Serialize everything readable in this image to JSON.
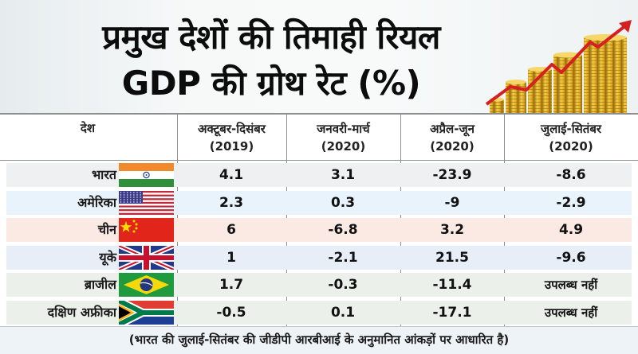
{
  "header": {
    "title_line1": "प्रमुख देशों की तिमाही रियल",
    "title_line2": "GDP की ग्रोथ रेट (%)",
    "decoration": "gold-coin-stacks-with-red-rising-arrow"
  },
  "table": {
    "country_header": "देश",
    "columns": [
      {
        "label": "अक्टूबर-दिसंबर",
        "year": "(2019)"
      },
      {
        "label": "जनवरी-मार्च",
        "year": "(2020)"
      },
      {
        "label": "अप्रैल-जून",
        "year": "(2020)"
      },
      {
        "label": "जुलाई-सितंबर",
        "year": "(2020)"
      }
    ],
    "rows": [
      {
        "country": "भारत",
        "flag": "india-flag-icon",
        "bg": "#eef0f1",
        "values": [
          "4.1",
          "3.1",
          "-23.9",
          "-8.6"
        ]
      },
      {
        "country": "अमेरिका",
        "flag": "usa-flag-icon",
        "bg": "#e9f3fb",
        "values": [
          "2.3",
          "0.3",
          "-9",
          "-2.9"
        ]
      },
      {
        "country": "चीन",
        "flag": "china-flag-icon",
        "bg": "#fbe9e4",
        "values": [
          "6",
          "-6.8",
          "3.2",
          "4.9"
        ]
      },
      {
        "country": "यूके",
        "flag": "uk-flag-icon",
        "bg": "#e8eef8",
        "values": [
          "1",
          "-2.1",
          "21.5",
          "-9.6"
        ]
      },
      {
        "country": "ब्राजील",
        "flag": "brazil-flag-icon",
        "bg": "#ebf1ea",
        "values": [
          "1.7",
          "-0.3",
          "-11.4",
          "उपलब्ध नहीं"
        ]
      },
      {
        "country": "दक्षिण अफ्रीका",
        "flag": "south-africa-flag-icon",
        "bg": "#ebf1ea",
        "values": [
          "-0.5",
          "0.1",
          "-17.1",
          "उपलब्ध नहीं"
        ]
      }
    ]
  },
  "footer": {
    "note": "(भारत की जुलाई-सितंबर की जीडीपी आरबीआई के अनुमानित आंकड़ों पर आधारित है)"
  },
  "chart_data": {
    "type": "table",
    "title": "प्रमुख देशों की तिमाही रियल GDP की ग्रोथ रेट (%)",
    "row_header": "देश",
    "columns": [
      "अक्टूबर-दिसंबर (2019)",
      "जनवरी-मार्च (2020)",
      "अप्रैल-जून (2020)",
      "जुलाई-सितंबर (2020)"
    ],
    "rows": [
      "भारत",
      "अमेरिका",
      "चीन",
      "यूके",
      "ब्राजील",
      "दक्षिण अफ्रीका"
    ],
    "series": [
      {
        "name": "भारत",
        "values": [
          4.1,
          3.1,
          -23.9,
          -8.6
        ]
      },
      {
        "name": "अमेरिका",
        "values": [
          2.3,
          0.3,
          -9,
          -2.9
        ]
      },
      {
        "name": "चीन",
        "values": [
          6,
          -6.8,
          3.2,
          4.9
        ]
      },
      {
        "name": "यूके",
        "values": [
          1,
          -2.1,
          21.5,
          -9.6
        ]
      },
      {
        "name": "ब्राजील",
        "values": [
          1.7,
          -0.3,
          -11.4,
          null
        ]
      },
      {
        "name": "दक्षिण अफ्रीका",
        "values": [
          -0.5,
          0.1,
          -17.1,
          null
        ]
      }
    ],
    "missing_value_label": "उपलब्ध नहीं",
    "note": "(भारत की जुलाई-सितंबर की जीडीपी आरबीआई के अनुमानित आंकड़ों पर आधारित है)"
  }
}
